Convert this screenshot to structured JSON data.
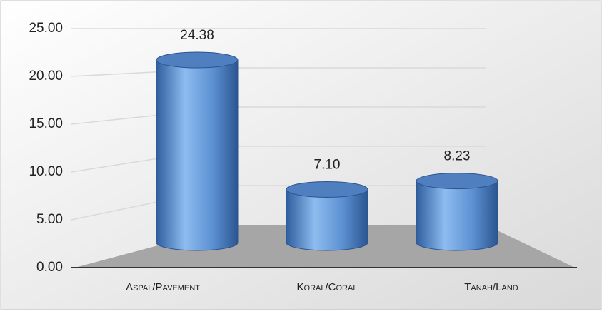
{
  "chart_data": {
    "type": "bar",
    "categories": [
      "Aspal/Pavement",
      "Koral/Coral",
      "Tanah/Land"
    ],
    "values": [
      24.38,
      7.1,
      8.23
    ],
    "value_labels": [
      "24.38",
      "7.10",
      "8.23"
    ],
    "color": "#5b9bd5",
    "ylim": [
      0,
      25
    ],
    "yticks": [
      {
        "value": 0,
        "label": "0.00"
      },
      {
        "value": 5,
        "label": "5.00"
      },
      {
        "value": 10,
        "label": "10.00"
      },
      {
        "value": 15,
        "label": "15.00"
      },
      {
        "value": 20,
        "label": "20.00"
      },
      {
        "value": 25,
        "label": "25.00"
      }
    ],
    "grid": true
  }
}
